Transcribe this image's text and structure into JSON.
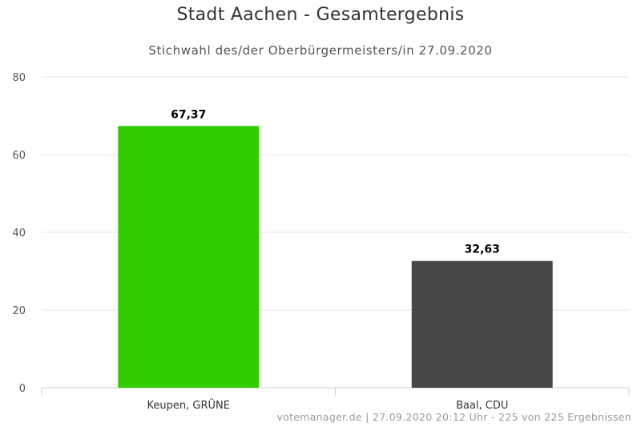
{
  "chart_data": {
    "type": "bar",
    "title": "Stadt Aachen - Gesamtergebnis",
    "subtitle": "Stichwahl des/der Oberbürgermeisters/in 27.09.2020",
    "categories": [
      "Keupen, GRÜNE",
      "Baal, CDU"
    ],
    "values": [
      67.37,
      32.63
    ],
    "data_labels": [
      "67,37",
      "32,63"
    ],
    "colors": [
      "#33cc00",
      "#474747"
    ],
    "ylim": [
      0,
      80
    ],
    "yticks": [
      0,
      20,
      40,
      60,
      80
    ],
    "xlabel": "",
    "ylabel": "",
    "grid": true,
    "legend": false
  },
  "credits": "votemanager.de | 27.09.2020 20:12 Uhr - 225 von 225 Ergebnissen"
}
